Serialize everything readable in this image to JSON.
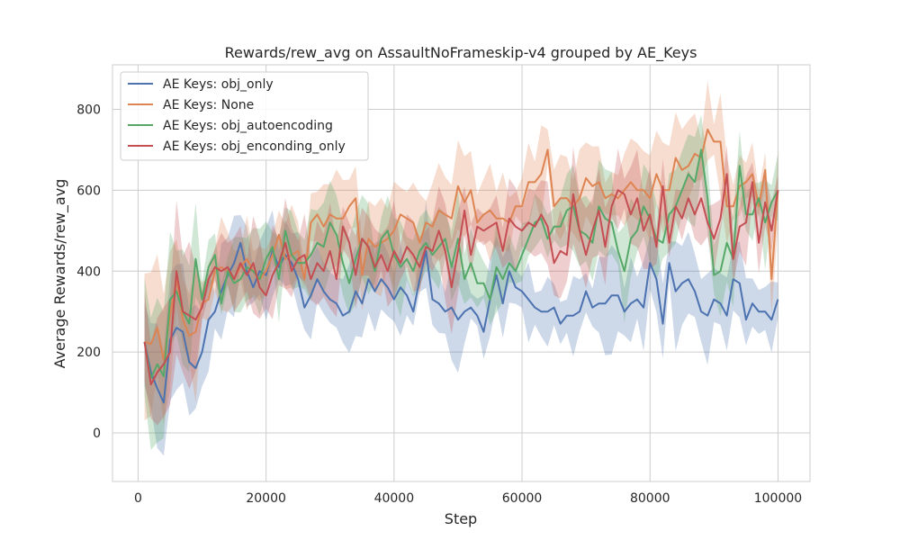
{
  "chart_data": {
    "type": "line",
    "title": "Rewards/rew_avg on AssaultNoFrameskip-v4 grouped by AE_Keys",
    "xlabel": "Step",
    "ylabel": "Average Rewards/rew_avg",
    "xlim": [
      -4000,
      105000
    ],
    "ylim": [
      -120,
      910
    ],
    "xticks": [
      0,
      20000,
      40000,
      60000,
      80000,
      100000
    ],
    "xtick_labels": [
      "0",
      "20000",
      "40000",
      "60000",
      "80000",
      "100000"
    ],
    "yticks": [
      0,
      200,
      400,
      600,
      800
    ],
    "ytick_labels": [
      "0",
      "200",
      "400",
      "600",
      "800"
    ],
    "grid": true,
    "legend_position": "top-left",
    "x": [
      1000,
      2000,
      3000,
      4000,
      5000,
      6000,
      7000,
      8000,
      9000,
      10000,
      11000,
      12000,
      13000,
      14000,
      15000,
      16000,
      17000,
      18000,
      19000,
      20000,
      21000,
      22000,
      23000,
      24000,
      25000,
      26000,
      27000,
      28000,
      29000,
      30000,
      31000,
      32000,
      33000,
      34000,
      35000,
      36000,
      37000,
      38000,
      39000,
      40000,
      41000,
      42000,
      43000,
      44000,
      45000,
      46000,
      47000,
      48000,
      49000,
      50000,
      51000,
      52000,
      53000,
      54000,
      55000,
      56000,
      57000,
      58000,
      59000,
      60000,
      61000,
      62000,
      63000,
      64000,
      65000,
      66000,
      67000,
      68000,
      69000,
      70000,
      71000,
      72000,
      73000,
      74000,
      75000,
      76000,
      77000,
      78000,
      79000,
      80000,
      81000,
      82000,
      83000,
      84000,
      85000,
      86000,
      87000,
      88000,
      89000,
      90000,
      91000,
      92000,
      93000,
      94000,
      95000,
      96000,
      97000,
      98000,
      99000,
      100000
    ],
    "series": [
      {
        "name": "AE Keys: obj_only",
        "color": "#4c72b0",
        "values": [
          225,
          150,
          110,
          75,
          230,
          260,
          250,
          175,
          160,
          200,
          280,
          300,
          350,
          390,
          420,
          470,
          400,
          360,
          400,
          390,
          450,
          410,
          440,
          420,
          380,
          310,
          340,
          380,
          350,
          330,
          320,
          290,
          300,
          350,
          320,
          380,
          350,
          380,
          360,
          330,
          360,
          340,
          300,
          380,
          450,
          330,
          320,
          300,
          310,
          280,
          300,
          310,
          290,
          250,
          330,
          390,
          320,
          400,
          360,
          350,
          330,
          310,
          300,
          300,
          310,
          270,
          290,
          290,
          300,
          350,
          310,
          320,
          320,
          340,
          340,
          300,
          320,
          330,
          310,
          420,
          380,
          270,
          420,
          350,
          370,
          380,
          350,
          300,
          290,
          330,
          320,
          290,
          380,
          370,
          280,
          320,
          300,
          300,
          280,
          330
        ]
      },
      {
        "name": "AE Keys: None",
        "color": "#dd8452",
        "values": [
          225,
          220,
          260,
          180,
          290,
          380,
          280,
          240,
          250,
          320,
          330,
          400,
          410,
          400,
          380,
          410,
          430,
          400,
          380,
          400,
          440,
          490,
          430,
          440,
          450,
          380,
          520,
          540,
          510,
          540,
          530,
          530,
          560,
          580,
          390,
          480,
          460,
          470,
          480,
          500,
          540,
          530,
          520,
          470,
          520,
          510,
          550,
          540,
          530,
          610,
          570,
          600,
          520,
          540,
          550,
          530,
          530,
          520,
          560,
          560,
          620,
          620,
          640,
          700,
          560,
          580,
          580,
          560,
          580,
          630,
          610,
          620,
          580,
          590,
          580,
          600,
          620,
          600,
          600,
          580,
          640,
          600,
          600,
          680,
          650,
          660,
          690,
          680,
          750,
          720,
          720,
          560,
          560,
          610,
          620,
          640,
          560,
          650,
          380,
          600
        ]
      },
      {
        "name": "AE Keys: obj_autoencoding",
        "color": "#55a868",
        "values": [
          225,
          135,
          170,
          140,
          330,
          350,
          300,
          270,
          430,
          330,
          410,
          440,
          320,
          400,
          370,
          380,
          410,
          400,
          380,
          430,
          460,
          380,
          500,
          440,
          420,
          420,
          440,
          470,
          460,
          520,
          490,
          420,
          370,
          430,
          480,
          460,
          400,
          480,
          500,
          440,
          410,
          430,
          400,
          450,
          470,
          440,
          460,
          480,
          410,
          480,
          380,
          420,
          370,
          370,
          330,
          410,
          380,
          420,
          400,
          440,
          480,
          520,
          530,
          480,
          510,
          510,
          550,
          560,
          500,
          490,
          470,
          560,
          530,
          520,
          450,
          400,
          480,
          500,
          560,
          530,
          480,
          470,
          540,
          560,
          600,
          640,
          620,
          700,
          580,
          390,
          400,
          470,
          430,
          660,
          540,
          540,
          580,
          520,
          570,
          600
        ]
      },
      {
        "name": "AE Keys: obj_enconding_only",
        "color": "#c44e52",
        "values": [
          225,
          120,
          150,
          170,
          200,
          400,
          300,
          290,
          280,
          310,
          380,
          410,
          400,
          410,
          380,
          420,
          390,
          420,
          360,
          340,
          390,
          420,
          470,
          400,
          430,
          440,
          380,
          420,
          400,
          450,
          380,
          510,
          470,
          390,
          480,
          460,
          410,
          440,
          400,
          450,
          420,
          460,
          440,
          410,
          460,
          450,
          500,
          450,
          360,
          450,
          550,
          440,
          510,
          500,
          510,
          520,
          450,
          530,
          510,
          500,
          520,
          510,
          540,
          510,
          420,
          450,
          440,
          590,
          500,
          440,
          500,
          550,
          460,
          560,
          600,
          590,
          540,
          580,
          500,
          540,
          460,
          610,
          470,
          560,
          530,
          580,
          540,
          580,
          520,
          480,
          530,
          640,
          430,
          510,
          520,
          620,
          470,
          570,
          500,
          600
        ]
      }
    ]
  }
}
